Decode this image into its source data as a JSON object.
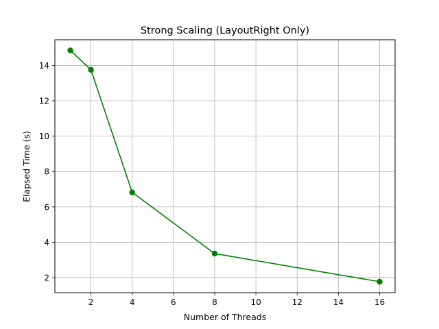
{
  "chart_data": {
    "type": "line",
    "title": "Strong Scaling (LayoutRight Only)",
    "xlabel": "Number of Threads",
    "ylabel": "Elapsed Time (s)",
    "x_ticks": [
      2,
      4,
      6,
      8,
      10,
      12,
      14,
      16
    ],
    "y_ticks": [
      2,
      4,
      6,
      8,
      10,
      12,
      14
    ],
    "xlim": [
      0.25,
      16.75
    ],
    "ylim": [
      1.15,
      15.45
    ],
    "grid": true,
    "series": [
      {
        "color": "#008000",
        "marker": "circle",
        "x": [
          1,
          2,
          4,
          8,
          16
        ],
        "y": [
          14.85,
          13.75,
          6.82,
          3.36,
          1.77
        ]
      }
    ]
  }
}
